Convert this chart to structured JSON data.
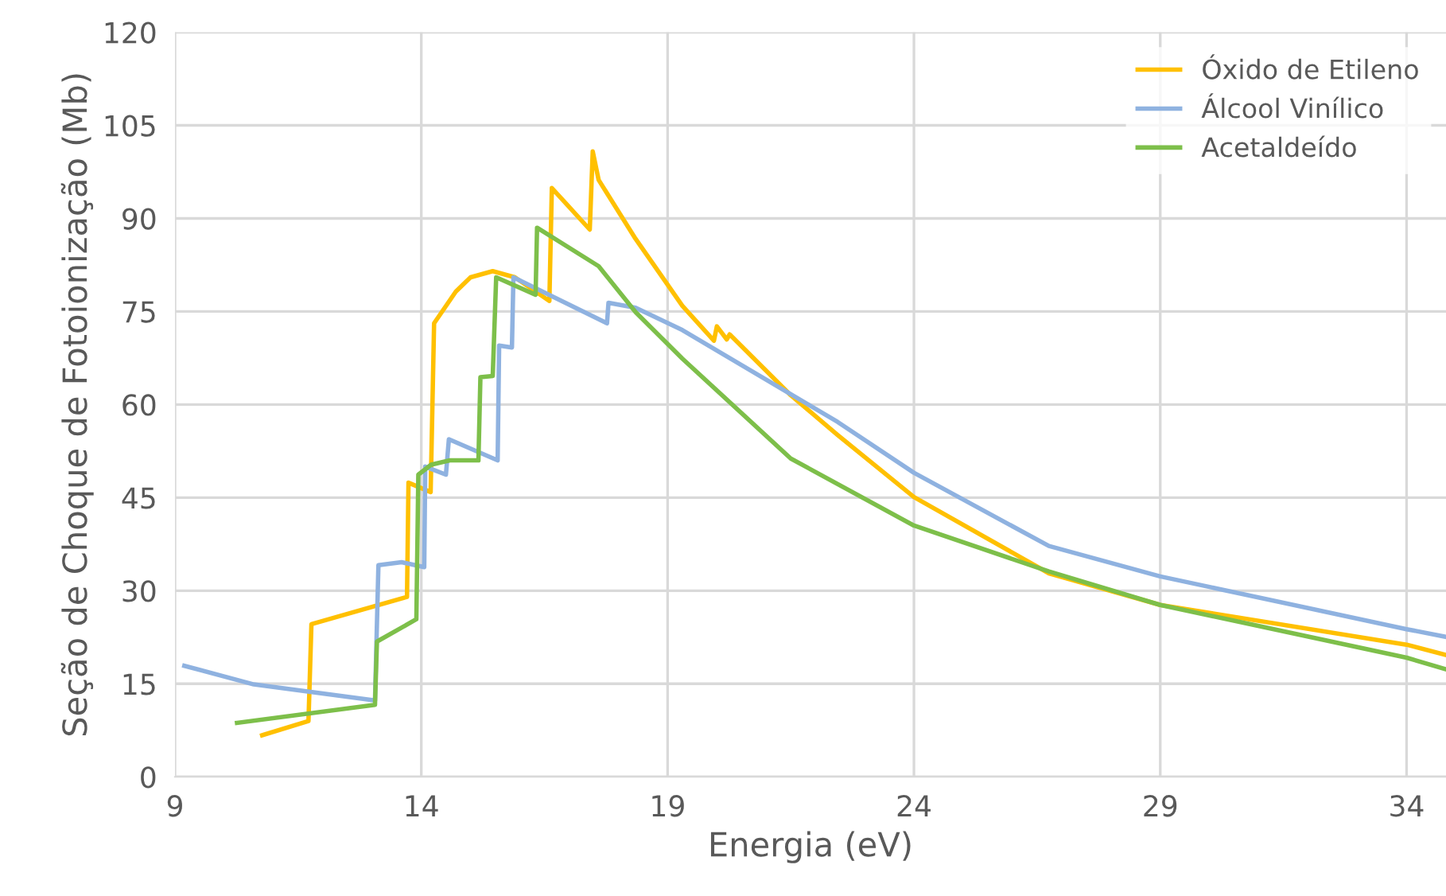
{
  "chart_data": {
    "type": "line",
    "xlabel": "Energia (eV)",
    "ylabel": "Seção de Choque de Fotoionização (Mb)",
    "xlim": [
      9,
      34.8
    ],
    "xticks": [
      9,
      14,
      19,
      24,
      29,
      34
    ],
    "ylim": [
      0,
      120
    ],
    "yticks": [
      0,
      15,
      30,
      45,
      60,
      75,
      90,
      105,
      120
    ],
    "grid": true,
    "legend": "top right",
    "marker": "none",
    "line_style": "solid",
    "series": [
      {
        "name": "Óxido de Etileno",
        "color": "#ffc000",
        "x": [
          10.77,
          11.71,
          11.77,
          13.71,
          13.74,
          14.19,
          14.26,
          14.7,
          15.0,
          15.45,
          15.9,
          16.6,
          16.65,
          17.42,
          17.48,
          17.6,
          18.35,
          19.3,
          19.94,
          20.0,
          20.2,
          20.26,
          21.5,
          22.45,
          24,
          26.74,
          29,
          34,
          34.77
        ],
        "values": [
          6.7,
          9.0,
          24.6,
          29.0,
          47.4,
          45.9,
          73.1,
          78.2,
          80.5,
          81.5,
          80.5,
          76.7,
          94.9,
          88.2,
          100.8,
          96.2,
          86.7,
          75.9,
          70.3,
          72.6,
          70.5,
          71.3,
          61.5,
          55.1,
          45.1,
          32.8,
          27.7,
          21.3,
          19.7
        ]
      },
      {
        "name": "Álcool Vinílico",
        "color": "#8fb2e0",
        "x": [
          9.19,
          10.6,
          13.06,
          13.13,
          13.6,
          14.06,
          14.08,
          14.5,
          14.56,
          15.55,
          15.58,
          15.84,
          15.87,
          17.77,
          17.8,
          18.35,
          19.3,
          22.45,
          24,
          26.74,
          29,
          34,
          34.77
        ],
        "values": [
          17.9,
          14.9,
          12.3,
          34.1,
          34.6,
          33.8,
          50.0,
          48.7,
          54.4,
          51.0,
          69.5,
          69.2,
          80.5,
          73.1,
          76.4,
          75.6,
          72.0,
          57.2,
          49.0,
          37.2,
          32.3,
          23.8,
          22.6
        ]
      },
      {
        "name": "Acetaldeído",
        "color": "#7dbf4a",
        "x": [
          10.26,
          13.06,
          13.1,
          13.9,
          13.94,
          14.2,
          14.58,
          15.16,
          15.2,
          15.45,
          15.52,
          16.32,
          16.35,
          17.6,
          18.35,
          19.3,
          21.5,
          24,
          26.74,
          29,
          34,
          34.77
        ],
        "values": [
          8.7,
          11.6,
          21.8,
          25.4,
          48.7,
          50.3,
          51.0,
          51.0,
          64.4,
          64.6,
          80.5,
          77.7,
          88.5,
          82.3,
          74.9,
          67.4,
          51.3,
          40.5,
          33.1,
          27.7,
          19.2,
          17.4
        ]
      }
    ]
  }
}
